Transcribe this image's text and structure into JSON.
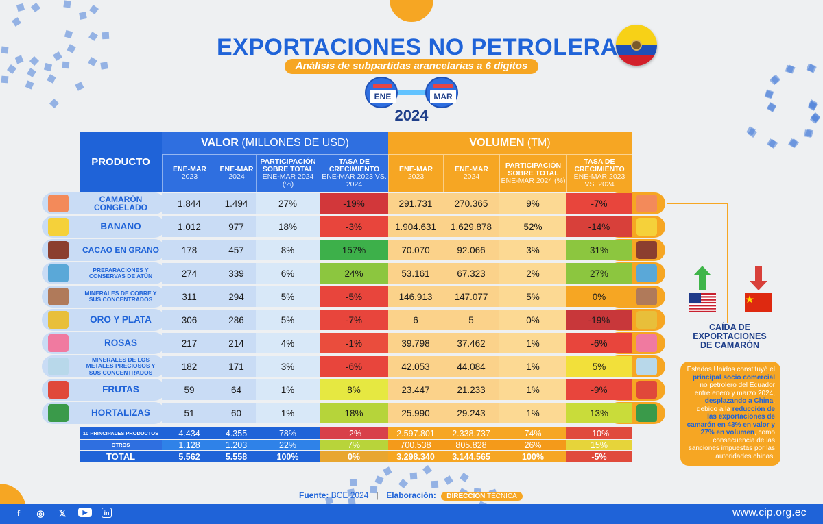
{
  "title": "EXPORTACIONES NO PETROLERAS:",
  "subtitle": "Análisis de subpartidas arancelarias a 6 dígitos",
  "period": {
    "from": "ENE",
    "to": "MAR",
    "year": "2024"
  },
  "table": {
    "product_header": "PRODUCTO",
    "value_header_bold": "VALOR",
    "value_header_rest": " (MILLONES DE USD)",
    "volume_header_bold": "VOLUMEN",
    "volume_header_rest": " (TM)",
    "sub_headers": [
      {
        "l1": "ENE-MAR",
        "l2": "2023"
      },
      {
        "l1": "ENE-MAR",
        "l2": "2024"
      },
      {
        "l1": "PARTICIPACIÓN SOBRE TOTAL",
        "l2": "ENE-MAR 2024 (%)"
      },
      {
        "l1": "TASA DE CRECIMIENTO",
        "l2": "ENE-MAR 2023 VS. 2024"
      },
      {
        "l1": "ENE-MAR",
        "l2": "2023"
      },
      {
        "l1": "ENE-MAR",
        "l2": "2024"
      },
      {
        "l1": "PARTICIPACIÓN SOBRE TOTAL",
        "l2": "ENE-MAR 2024 (%)"
      },
      {
        "l1": "TASA DE CRECIMIENTO",
        "l2": "ENE-MAR 2023 VS. 2024"
      }
    ],
    "rows": [
      {
        "product": "CAMARÓN CONGELADO",
        "icon": "shrimp-icon",
        "v23": "1.844",
        "v24": "1.494",
        "vshare": "27%",
        "vgrowth": "-19%",
        "vg_color": "#d2373a",
        "t23": "291.731",
        "t24": "270.365",
        "tshare": "9%",
        "tgrowth": "-7%",
        "tg_color": "#e8453c"
      },
      {
        "product": "BANANO",
        "icon": "banana-icon",
        "v23": "1.012",
        "v24": "977",
        "vshare": "18%",
        "vgrowth": "-3%",
        "vg_color": "#e8453c",
        "t23": "1.904.631",
        "t24": "1.629.878",
        "tshare": "52%",
        "tgrowth": "-14%",
        "tg_color": "#d8403a"
      },
      {
        "product": "CACAO EN GRANO",
        "icon": "cacao-icon",
        "v23": "178",
        "v24": "457",
        "vshare": "8%",
        "vgrowth": "157%",
        "vg_color": "#3db04a",
        "t23": "70.070",
        "t24": "92.066",
        "tshare": "3%",
        "tgrowth": "31%",
        "tg_color": "#8cc63f"
      },
      {
        "product": "PREPARACIONES Y CONSERVAS DE ATÚN",
        "icon": "tuna-can-icon",
        "v23": "274",
        "v24": "339",
        "vshare": "6%",
        "vgrowth": "24%",
        "vg_color": "#8cc63f",
        "t23": "53.161",
        "t24": "67.323",
        "tshare": "2%",
        "tgrowth": "27%",
        "tg_color": "#8cc63f"
      },
      {
        "product": "MINERALES DE COBRE Y SUS CONCENTRADOS",
        "icon": "copper-ore-icon",
        "v23": "311",
        "v24": "294",
        "vshare": "5%",
        "vgrowth": "-5%",
        "vg_color": "#e8453c",
        "t23": "146.913",
        "t24": "147.077",
        "tshare": "5%",
        "tgrowth": "0%",
        "tg_color": "#f6a623"
      },
      {
        "product": "ORO Y PLATA",
        "icon": "gold-bars-icon",
        "v23": "306",
        "v24": "286",
        "vshare": "5%",
        "vgrowth": "-7%",
        "vg_color": "#e8453c",
        "t23": "6",
        "t24": "5",
        "tshare": "0%",
        "tgrowth": "-19%",
        "tg_color": "#c8373a"
      },
      {
        "product": "ROSAS",
        "icon": "rose-icon",
        "v23": "217",
        "v24": "214",
        "vshare": "4%",
        "vgrowth": "-1%",
        "vg_color": "#ea4d3d",
        "t23": "39.798",
        "t24": "37.462",
        "tshare": "1%",
        "tgrowth": "-6%",
        "tg_color": "#e8453c"
      },
      {
        "product": "MINERALES DE LOS METALES PRECIOSOS Y SUS CONCENTRADOS",
        "icon": "precious-ore-icon",
        "v23": "182",
        "v24": "171",
        "vshare": "3%",
        "vgrowth": "-6%",
        "vg_color": "#e8453c",
        "t23": "42.053",
        "t24": "44.084",
        "tshare": "1%",
        "tgrowth": "5%",
        "tg_color": "#f2e03a"
      },
      {
        "product": "FRUTAS",
        "icon": "fruits-icon",
        "v23": "59",
        "v24": "64",
        "vshare": "1%",
        "vgrowth": "8%",
        "vg_color": "#e6e841",
        "t23": "23.447",
        "t24": "21.233",
        "tshare": "1%",
        "tgrowth": "-9%",
        "tg_color": "#e8453c"
      },
      {
        "product": "HORTALIZAS",
        "icon": "vegetables-icon",
        "v23": "51",
        "v24": "60",
        "vshare": "1%",
        "vgrowth": "18%",
        "vg_color": "#b6d43a",
        "t23": "25.990",
        "t24": "29.243",
        "tshare": "1%",
        "tgrowth": "13%",
        "tg_color": "#c9dc3a"
      }
    ],
    "summary_rows": [
      {
        "product": "10 PRINCIPALES PRODUCTOS",
        "v23": "4.434",
        "v24": "4.355",
        "vshare": "78%",
        "vgrowth": "-2%",
        "vg_color": "#d8404a",
        "t23": "2.597.801",
        "t24": "2.338.737",
        "tshare": "74%",
        "tgrowth": "-10%",
        "tg_color": "#e04a3c"
      },
      {
        "product": "OTROS",
        "v23": "1.128",
        "v24": "1.203",
        "vshare": "22%",
        "vgrowth": "7%",
        "vg_color": "#b8d43a",
        "t23": "700.538",
        "t24": "805.828",
        "tshare": "26%",
        "tgrowth": "15%",
        "tg_color": "#e6d43a"
      },
      {
        "product": "TOTAL",
        "v23": "5.562",
        "v24": "5.558",
        "vshare": "100%",
        "vgrowth": "0%",
        "vg_color": "#e8a630",
        "t23": "3.298.340",
        "t24": "3.144.565",
        "tshare": "100%",
        "tgrowth": "-5%",
        "tg_color": "#e04a3c"
      }
    ]
  },
  "side": {
    "title": "CAÍDA DE EXPORTACIONES DE CAMARÓN",
    "text_parts": [
      {
        "t": "Estados Unidos constituyó el ",
        "hl": false
      },
      {
        "t": "principal socio comercial",
        "hl": true
      },
      {
        "t": " no petrolero del Ecuador entre enero y marzo 2024, ",
        "hl": false
      },
      {
        "t": "desplazando a China",
        "hl": true
      },
      {
        "t": ", debido a la ",
        "hl": false
      },
      {
        "t": "reducción de las exportaciones de camarón en 43% en valor y 27% en volumen",
        "hl": true
      },
      {
        "t": ", como consecuencia de las sanciones impuestas por las autoridades chinas.",
        "hl": false
      }
    ]
  },
  "footer": {
    "source_label": "Fuente:",
    "source_value": "BCE 2024",
    "separator": "|",
    "elab_label": "Elaboración:",
    "elab_brand_bold": "DIRECCIÓN",
    "elab_brand_rest": " TÉCNICA",
    "website": "www.cip.org.ec",
    "social": [
      "facebook-icon",
      "instagram-icon",
      "x-icon",
      "youtube-icon",
      "linkedin-icon"
    ]
  },
  "colors": {
    "blue": "#1f63d8",
    "orange": "#f6a623",
    "light_blue": "#c9dcf5",
    "light_orange": "#fbd28a"
  }
}
